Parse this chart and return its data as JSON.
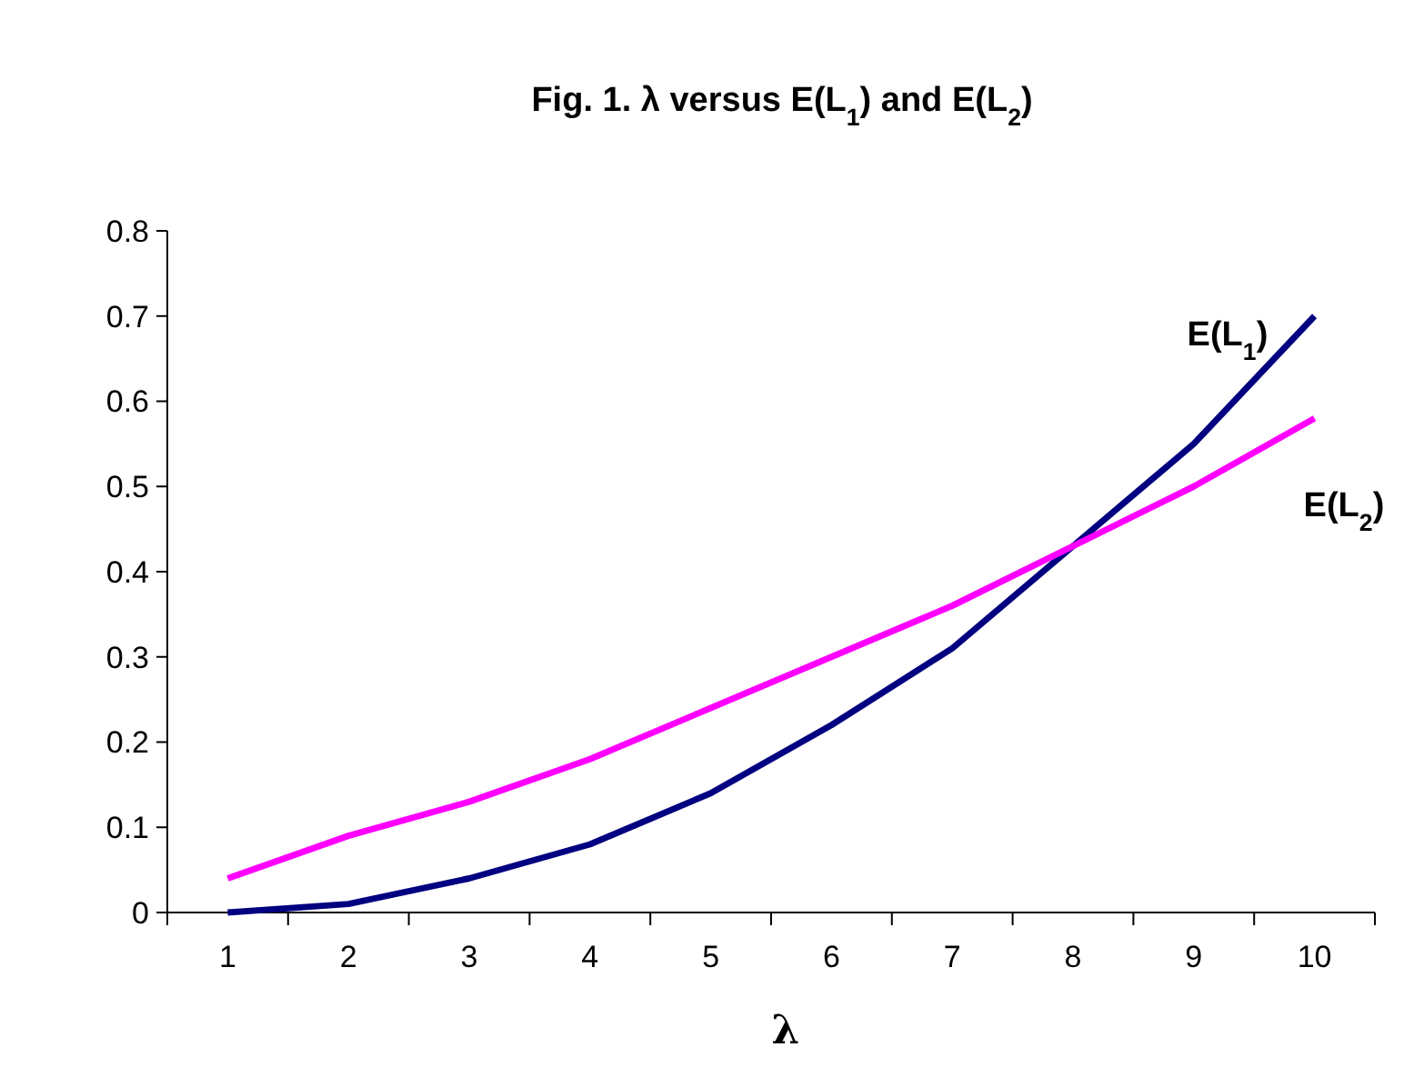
{
  "chart_data": {
    "type": "line",
    "title": "Fig. 1.    λ versus E(L$_{1}$) and E(L$_{2}$)",
    "xlabel": "λ",
    "categories": [
      "1",
      "2",
      "3",
      "4",
      "5",
      "6",
      "7",
      "8",
      "9",
      "10"
    ],
    "series": [
      {
        "name": "E(L$_{1}$)",
        "color": "#000080",
        "values": [
          0,
          0.01,
          0.04,
          0.08,
          0.14,
          0.22,
          0.31,
          0.43,
          0.55,
          0.7
        ]
      },
      {
        "name": "E(L$_{2}$)",
        "color": "#ff00ff",
        "values": [
          0.04,
          0.09,
          0.13,
          0.18,
          0.24,
          0.3,
          0.36,
          0.43,
          0.5,
          0.58
        ]
      }
    ],
    "ylim": [
      0,
      0.8
    ],
    "yticks": [
      0,
      0.1,
      0.2,
      0.3,
      0.4,
      0.5,
      0.6,
      0.7,
      0.8
    ],
    "grid": false,
    "marker": "none",
    "line_style": "solid"
  }
}
